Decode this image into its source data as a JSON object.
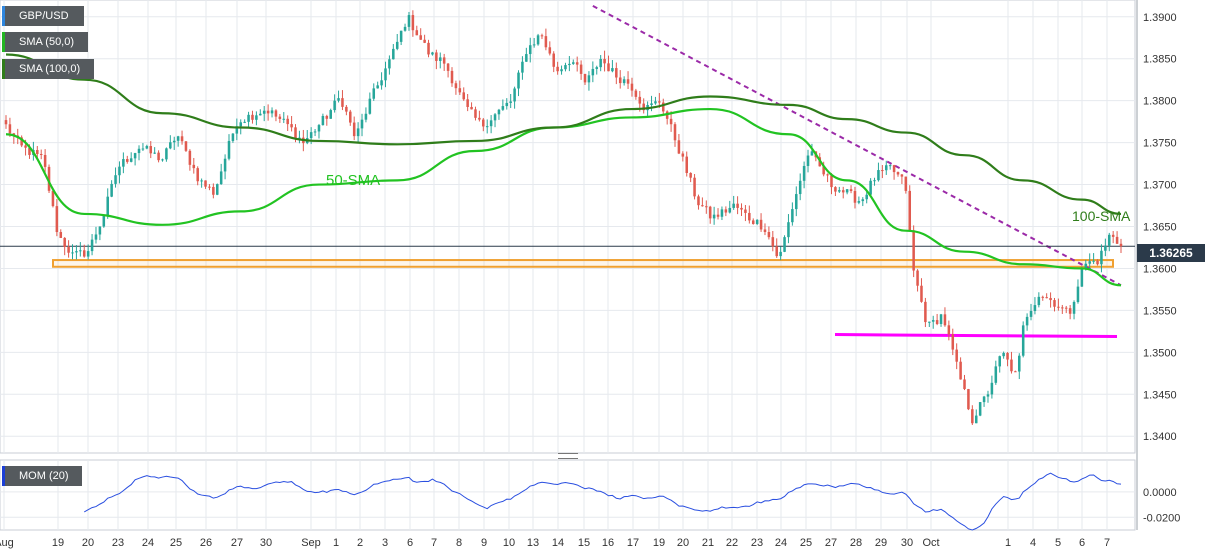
{
  "legend": {
    "symbol": "GBP/USD",
    "sma50": "SMA (50,0)",
    "sma100": "SMA (100,0)",
    "momentum": "MOM (20)"
  },
  "last_price_label": "1.36265",
  "colors": {
    "bull": "#26a69a",
    "bear": "#e05a4f",
    "sma50": "#22c322",
    "sma100": "#2f7d1a",
    "trendline": "#9b2aa8",
    "support_zone": "#f0a030",
    "support_line": "#ff00ff",
    "momentum": "#2a4fe0",
    "grid": "#e6e9ee"
  },
  "chart_data": [
    {
      "type": "candlestick",
      "title": "GBP/USD",
      "ylim": [
        1.338,
        1.392
      ],
      "y_ticks": [
        "1.3900",
        "1.3850",
        "1.3800",
        "1.3750",
        "1.3700",
        "1.3650",
        "1.3600",
        "1.3550",
        "1.3500",
        "1.3450",
        "1.3400"
      ],
      "x_ticks": [
        "Aug",
        "19",
        "20",
        "23",
        "24",
        "25",
        "26",
        "27",
        "30",
        "Sep",
        "1",
        "2",
        "3",
        "6",
        "7",
        "8",
        "9",
        "10",
        "13",
        "14",
        "15",
        "16",
        "17",
        "19",
        "20",
        "21",
        "22",
        "23",
        "24",
        "25",
        "27",
        "28",
        "29",
        "30",
        "Oct",
        "1",
        "4",
        "5",
        "6",
        "7"
      ],
      "last_price": 1.36265,
      "series": [
        {
          "name": "SMA (50,0)",
          "annotation": "50-SMA",
          "x": [
            0,
            20,
            40,
            60,
            80,
            100,
            120,
            140,
            160,
            180,
            200,
            215,
            230,
            245,
            260,
            275,
            285
          ],
          "y": [
            1.376,
            1.3665,
            1.3652,
            1.3668,
            1.37,
            1.3705,
            1.374,
            1.3768,
            1.378,
            1.379,
            1.376,
            1.3705,
            1.3645,
            1.362,
            1.3605,
            1.36,
            1.358
          ]
        },
        {
          "name": "SMA (100,0)",
          "annotation": "100-SMA",
          "x": [
            0,
            20,
            40,
            60,
            80,
            100,
            120,
            140,
            160,
            180,
            200,
            215,
            230,
            245,
            260,
            275,
            285
          ],
          "y": [
            1.3855,
            1.3825,
            1.3785,
            1.3768,
            1.3752,
            1.3748,
            1.3752,
            1.3768,
            1.379,
            1.3805,
            1.3795,
            1.3778,
            1.3762,
            1.3735,
            1.3705,
            1.3682,
            1.3665
          ]
        }
      ],
      "annotations": [
        {
          "kind": "resistance-trendline",
          "from": [
            150,
            1.3913
          ],
          "to": [
            285,
            1.358
          ]
        },
        {
          "kind": "support-zone",
          "label": "",
          "y": [
            1.3602,
            1.361
          ]
        },
        {
          "kind": "support-line",
          "label": "",
          "y": 1.352
        }
      ]
    },
    {
      "type": "line",
      "title": "MOM (20)",
      "y_ticks": [
        "0.0000",
        "-0.0200"
      ],
      "ylim": [
        -0.03,
        0.025
      ],
      "series": [
        {
          "name": "MOM (20)"
        }
      ]
    }
  ]
}
